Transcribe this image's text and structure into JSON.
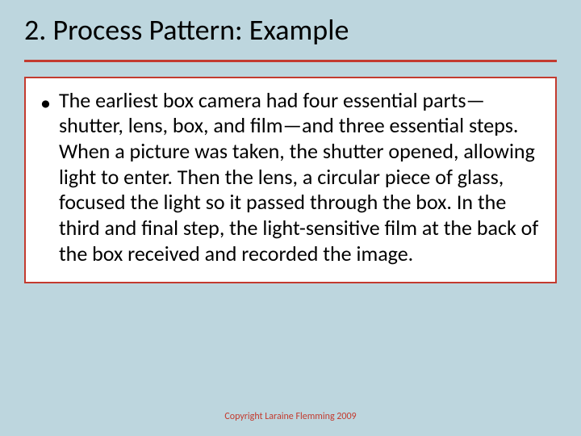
{
  "slide": {
    "background_color": "#bdd6de",
    "title": {
      "text": "2.  Process Pattern:  Example",
      "font_size": 36,
      "color": "#000000",
      "underline_color": "#c33b2f",
      "underline_thickness": 3
    },
    "content": {
      "box_background": "#ffffff",
      "box_border_color": "#c33b2f",
      "box_border_width": 2,
      "bullet_glyph": "•",
      "body_font_size": 26,
      "body_color": "#000000",
      "body_text": "The earliest box camera had four essential parts—shutter, lens, box, and film—and three essential steps.  When a picture was taken, the shutter opened, allowing light to enter.  Then the lens, a circular piece of glass, focused the light so it passed through the box.  In the third and final step, the light-sensitive film at the back of the box received and recorded the image."
    },
    "footer": {
      "text": "Copyright Laraine Flemming 2009",
      "font_size": 12,
      "color": "#c33b2f"
    }
  }
}
